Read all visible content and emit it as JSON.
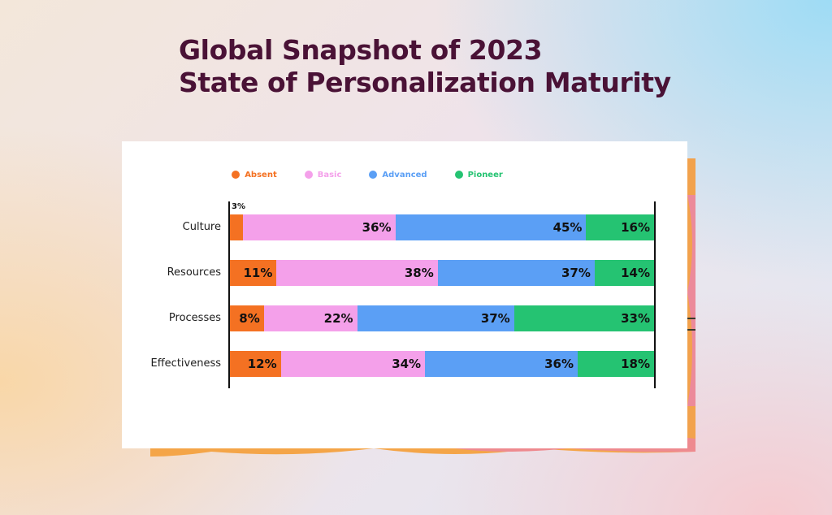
{
  "title": {
    "line1": "Global Snapshot of 2023",
    "line2": "State of Personalization Maturity"
  },
  "colors": {
    "Absent": "#f47122",
    "Basic": "#f4a0ea",
    "Advanced": "#5b9ff5",
    "Pioneer": "#25c372",
    "title": "#4a1236"
  },
  "chart_data": {
    "type": "bar",
    "orientation": "horizontal",
    "stacked": true,
    "categories": [
      "Culture",
      "Resources",
      "Processes",
      "Effectiveness"
    ],
    "series": [
      {
        "name": "Absent",
        "values": [
          3,
          11,
          8,
          12
        ]
      },
      {
        "name": "Basic",
        "values": [
          36,
          38,
          22,
          34
        ]
      },
      {
        "name": "Advanced",
        "values": [
          45,
          37,
          37,
          36
        ]
      },
      {
        "name": "Pioneer",
        "values": [
          16,
          14,
          33,
          18
        ]
      }
    ],
    "value_suffix": "%",
    "xlim": [
      0,
      100
    ],
    "legend_position": "top-center",
    "grid": false
  }
}
